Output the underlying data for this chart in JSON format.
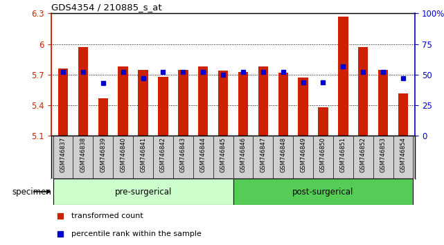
{
  "title": "GDS4354 / 210885_s_at",
  "samples": [
    "GSM746837",
    "GSM746838",
    "GSM746839",
    "GSM746840",
    "GSM746841",
    "GSM746842",
    "GSM746843",
    "GSM746844",
    "GSM746845",
    "GSM746846",
    "GSM746847",
    "GSM746848",
    "GSM746849",
    "GSM746850",
    "GSM746851",
    "GSM746852",
    "GSM746853",
    "GSM746854"
  ],
  "bar_values": [
    5.76,
    5.97,
    5.47,
    5.78,
    5.75,
    5.68,
    5.75,
    5.78,
    5.74,
    5.73,
    5.78,
    5.72,
    5.67,
    5.38,
    6.27,
    5.97,
    5.75,
    5.52
  ],
  "percentile_values": [
    52,
    52,
    43,
    52,
    47,
    52,
    52,
    52,
    50,
    52,
    52,
    52,
    44,
    44,
    57,
    52,
    52,
    47
  ],
  "ymin": 5.1,
  "ymax": 6.3,
  "left_yticks": [
    5.1,
    5.4,
    5.7,
    6.0,
    6.3
  ],
  "left_ytick_labels": [
    "5.1",
    "5.4",
    "5.7",
    "6",
    "6.3"
  ],
  "right_ytick_pcts": [
    0,
    25,
    50,
    75,
    100
  ],
  "right_ytick_labels": [
    "0",
    "25",
    "50",
    "75",
    "100%"
  ],
  "grid_lines": [
    5.4,
    5.7,
    6.0
  ],
  "bar_color": "#cc2200",
  "dot_color": "#0000cc",
  "pre_color": "#ccffcc",
  "post_color": "#55cc55",
  "n_pre": 9,
  "n_post": 9,
  "pre_label": "pre-surgerical",
  "post_label": "post-surgerical",
  "specimen_label": "specimen",
  "legend_bar_label": "transformed count",
  "legend_dot_label": "percentile rank within the sample",
  "left_tick_color": "#cc2200",
  "right_tick_color": "#0000cc",
  "sample_bg_color": "#d0d0d0",
  "cell_divider_color": "#aaaaaa"
}
